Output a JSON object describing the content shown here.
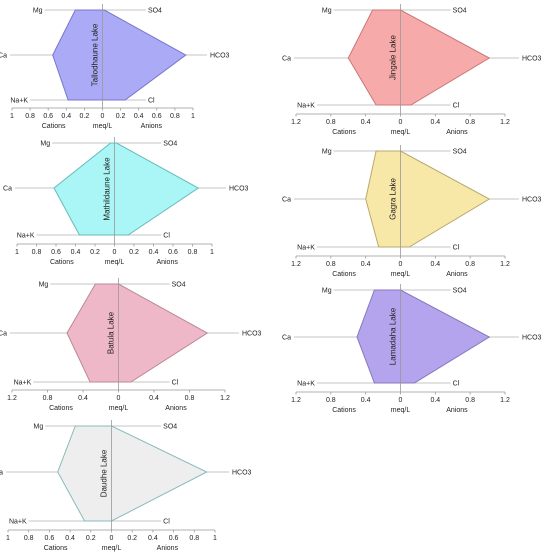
{
  "figure": {
    "ion_labels": {
      "mg": "Mg",
      "ca": "Ca",
      "nak": "Na+K",
      "so4": "SO4",
      "hco3": "HCO3",
      "cl": "Cl"
    },
    "axis_labels": {
      "cations": "Cations",
      "center": "meq/L",
      "anions": "Anions"
    }
  },
  "chart_data": [
    {
      "type": "stiff",
      "title": "Tallodhaune Lake",
      "xlim": [
        -1,
        1
      ],
      "ticks": [
        -1,
        -0.8,
        -0.6,
        -0.4,
        -0.2,
        0,
        0.2,
        0.4,
        0.6,
        0.8,
        1
      ],
      "tick_labels": [
        "1",
        "0.8",
        "0.6",
        "0.4",
        "0.2",
        "0",
        "0.2",
        "0.4",
        "0.6",
        "0.8",
        "1"
      ],
      "cations": {
        "Mg": 0.3,
        "Ca": 0.55,
        "Na+K": 0.38
      },
      "anions": {
        "SO4": 0.02,
        "HCO3": 0.92,
        "Cl": 0.25
      },
      "fill": "#aaaaf6",
      "stroke": "#7777cc"
    },
    {
      "type": "stiff",
      "title": "Jingale Lake",
      "xlim": [
        -1.2,
        1.2
      ],
      "ticks": [
        -1.2,
        -0.8,
        -0.4,
        0,
        0.4,
        0.8,
        1.2
      ],
      "tick_labels": [
        "1.2",
        "0.8",
        "0.4",
        "0",
        "0.4",
        "0.8",
        "1.2"
      ],
      "cations": {
        "Mg": 0.32,
        "Ca": 0.6,
        "Na+K": 0.28
      },
      "anions": {
        "SO4": 0.0,
        "HCO3": 1.02,
        "Cl": 0.12
      },
      "fill": "#f7aaaa",
      "stroke": "#cc7777"
    },
    {
      "type": "stiff",
      "title": "Mathildaune Lake",
      "xlim": [
        -1,
        1
      ],
      "ticks": [
        -1,
        -0.8,
        -0.6,
        -0.4,
        -0.2,
        0,
        0.2,
        0.4,
        0.6,
        0.8,
        1
      ],
      "tick_labels": [
        "1",
        "0.8",
        "0.6",
        "0.4",
        "0.2",
        "0",
        "0.2",
        "0.4",
        "0.6",
        "0.8",
        "1"
      ],
      "cations": {
        "Mg": 0.04,
        "Ca": 0.62,
        "Na+K": 0.36
      },
      "anions": {
        "SO4": 0.02,
        "HCO3": 0.86,
        "Cl": 0.14
      },
      "fill": "#aaf5f5",
      "stroke": "#66bbbb"
    },
    {
      "type": "stiff",
      "title": "Gagra Lake",
      "xlim": [
        -1.2,
        1.2
      ],
      "ticks": [
        -1.2,
        -0.8,
        -0.4,
        0,
        0.4,
        0.8,
        1.2
      ],
      "tick_labels": [
        "1.2",
        "0.8",
        "0.4",
        "0",
        "0.4",
        "0.8",
        "1.2"
      ],
      "cations": {
        "Mg": 0.28,
        "Ca": 0.4,
        "Na+K": 0.25
      },
      "anions": {
        "SO4": 0.0,
        "HCO3": 1.02,
        "Cl": 0.1
      },
      "fill": "#f8e8a8",
      "stroke": "#b8a870"
    },
    {
      "type": "stiff",
      "title": "Batula Lake",
      "xlim": [
        -1.2,
        1.2
      ],
      "ticks": [
        -1.2,
        -0.8,
        -0.4,
        0,
        0.4,
        0.8,
        1.2
      ],
      "tick_labels": [
        "1.2",
        "0.8",
        "0.4",
        "0",
        "0.4",
        "0.8",
        "1.2"
      ],
      "cations": {
        "Mg": 0.26,
        "Ca": 0.58,
        "Na+K": 0.32
      },
      "anions": {
        "SO4": 0.0,
        "HCO3": 1.0,
        "Cl": 0.14
      },
      "fill": "#efb8c8",
      "stroke": "#bb8899"
    },
    {
      "type": "stiff",
      "title": "Lamadaha Lake",
      "xlim": [
        -1.2,
        1.2
      ],
      "ticks": [
        -1.2,
        -0.8,
        -0.4,
        0,
        0.4,
        0.8,
        1.2
      ],
      "tick_labels": [
        "1.2",
        "0.8",
        "0.4",
        "0",
        "0.4",
        "0.8",
        "1.2"
      ],
      "cations": {
        "Mg": 0.3,
        "Ca": 0.5,
        "Na+K": 0.3
      },
      "anions": {
        "SO4": 0.0,
        "HCO3": 1.02,
        "Cl": 0.16
      },
      "fill": "#b4a4ee",
      "stroke": "#8877bb"
    },
    {
      "type": "stiff",
      "title": "Daudhe Lake",
      "xlim": [
        -1,
        1
      ],
      "ticks": [
        -1,
        -0.8,
        -0.6,
        -0.4,
        -0.2,
        0,
        0.2,
        0.4,
        0.6,
        0.8,
        1
      ],
      "tick_labels": [
        "1",
        "0.8",
        "0.6",
        "0.4",
        "0.2",
        "0",
        "0.2",
        "0.4",
        "0.6",
        "0.8",
        "1"
      ],
      "cations": {
        "Mg": 0.35,
        "Ca": 0.52,
        "Na+K": 0.26
      },
      "anions": {
        "SO4": 0.0,
        "HCO3": 0.92,
        "Cl": 0.0
      },
      "fill": "#eeeeee",
      "stroke": "#88bbbb"
    }
  ]
}
